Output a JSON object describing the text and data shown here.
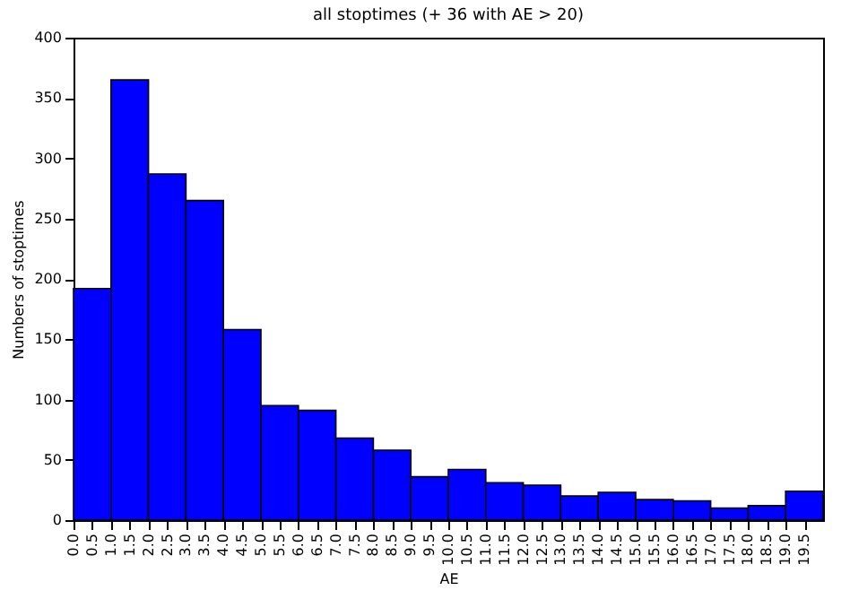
{
  "chart_data": {
    "type": "histogram",
    "title": "all stoptimes (+ 36 with AE > 20)",
    "xlabel": "AE",
    "ylabel": "Numbers of stoptimes",
    "bins": [
      0,
      1,
      2,
      3,
      4,
      5,
      6,
      7,
      8,
      9,
      10,
      11,
      12,
      13,
      14,
      15,
      16,
      17,
      18,
      19,
      20
    ],
    "values": [
      192,
      365,
      287,
      265,
      158,
      95,
      91,
      68,
      58,
      36,
      42,
      31,
      29,
      20,
      23,
      17,
      16,
      10,
      12,
      24
    ],
    "color": "#0000ff",
    "xlim": [
      0,
      20
    ],
    "xticks": [
      {
        "value": 0,
        "label": "0.0"
      },
      {
        "value": 0.5,
        "label": "0.5"
      },
      {
        "value": 1,
        "label": "1.0"
      },
      {
        "value": 1.5,
        "label": "1.5"
      },
      {
        "value": 2,
        "label": "2.0"
      },
      {
        "value": 2.5,
        "label": "2.5"
      },
      {
        "value": 3,
        "label": "3.0"
      },
      {
        "value": 3.5,
        "label": "3.5"
      },
      {
        "value": 4,
        "label": "4.0"
      },
      {
        "value": 4.5,
        "label": "4.5"
      },
      {
        "value": 5,
        "label": "5.0"
      },
      {
        "value": 5.5,
        "label": "5.5"
      },
      {
        "value": 6,
        "label": "6.0"
      },
      {
        "value": 6.5,
        "label": "6.5"
      },
      {
        "value": 7,
        "label": "7.0"
      },
      {
        "value": 7.5,
        "label": "7.5"
      },
      {
        "value": 8,
        "label": "8.0"
      },
      {
        "value": 8.5,
        "label": "8.5"
      },
      {
        "value": 9,
        "label": "9.0"
      },
      {
        "value": 9.5,
        "label": "9.5"
      },
      {
        "value": 10,
        "label": "10.0"
      },
      {
        "value": 10.5,
        "label": "10.5"
      },
      {
        "value": 11,
        "label": "11.0"
      },
      {
        "value": 11.5,
        "label": "11.5"
      },
      {
        "value": 12,
        "label": "12.0"
      },
      {
        "value": 12.5,
        "label": "12.5"
      },
      {
        "value": 13,
        "label": "13.0"
      },
      {
        "value": 13.5,
        "label": "13.5"
      },
      {
        "value": 14,
        "label": "14.0"
      },
      {
        "value": 14.5,
        "label": "14.5"
      },
      {
        "value": 15,
        "label": "15.0"
      },
      {
        "value": 15.5,
        "label": "15.5"
      },
      {
        "value": 16,
        "label": "16.0"
      },
      {
        "value": 16.5,
        "label": "16.5"
      },
      {
        "value": 17,
        "label": "17.0"
      },
      {
        "value": 17.5,
        "label": "17.5"
      },
      {
        "value": 18,
        "label": "18.0"
      },
      {
        "value": 18.5,
        "label": "18.5"
      },
      {
        "value": 19,
        "label": "19.0"
      },
      {
        "value": 19.5,
        "label": "19.5"
      }
    ],
    "ylim": [
      0,
      400
    ],
    "yticks": [
      0,
      50,
      100,
      150,
      200,
      250,
      300,
      350,
      400
    ],
    "grid": false
  }
}
